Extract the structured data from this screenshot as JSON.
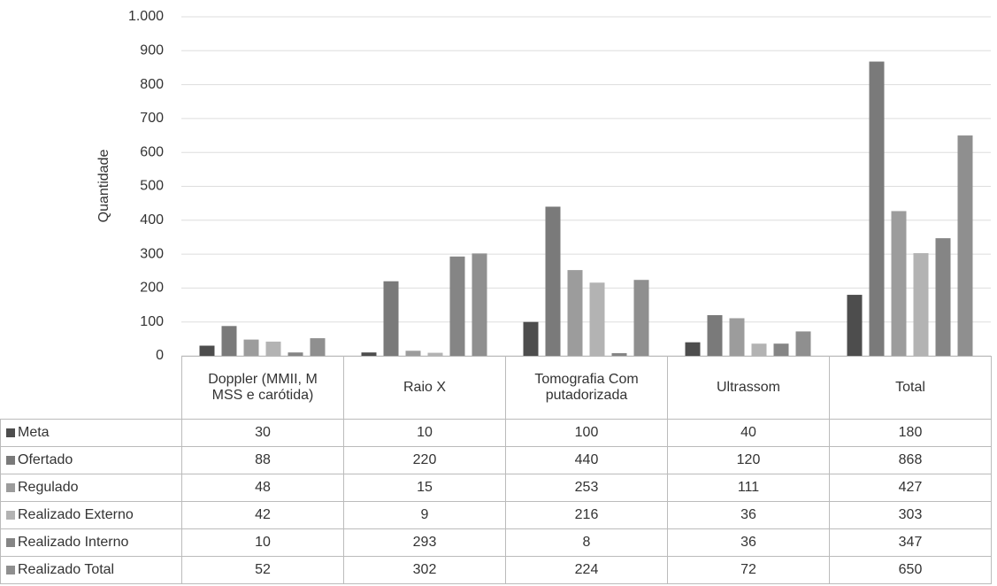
{
  "chart_data": {
    "type": "bar",
    "y_label": "Quantidade",
    "categories": [
      "Doppler (MMII, MMSS e carótida)",
      "Raio X",
      "Tomografia Computadorizada",
      "Ultrassom",
      "Total"
    ],
    "series": [
      {
        "name": "Meta",
        "color": "#4d4d4d",
        "values": [
          30,
          10,
          100,
          40,
          180
        ]
      },
      {
        "name": "Ofertado",
        "color": "#7a7a7a",
        "values": [
          88,
          220,
          440,
          120,
          868
        ]
      },
      {
        "name": "Regulado",
        "color": "#9c9c9c",
        "values": [
          48,
          15,
          253,
          111,
          427
        ]
      },
      {
        "name": "Realizado Externo",
        "color": "#b3b3b3",
        "values": [
          42,
          9,
          216,
          36,
          303
        ]
      },
      {
        "name": "Realizado Interno",
        "color": "#858585",
        "values": [
          10,
          293,
          8,
          36,
          347
        ]
      },
      {
        "name": "Realizado Total",
        "color": "#8f8f8f",
        "values": [
          52,
          302,
          224,
          72,
          650
        ]
      }
    ],
    "ylim": [
      0,
      1000
    ],
    "yticks": [
      0,
      100,
      200,
      300,
      400,
      500,
      600,
      700,
      800,
      900,
      {
        "value": 1000,
        "label": "1.000"
      }
    ],
    "grid": true
  }
}
